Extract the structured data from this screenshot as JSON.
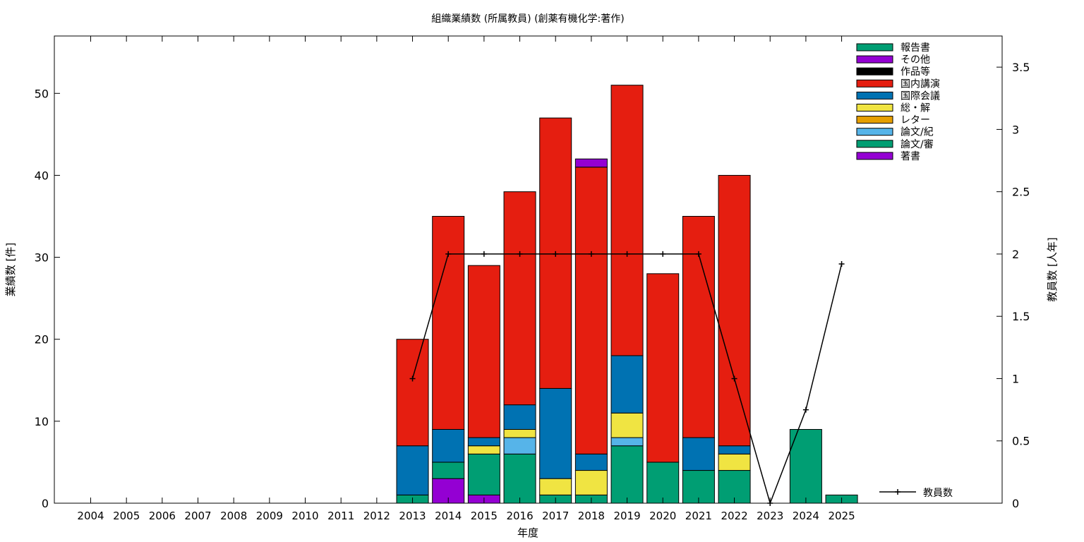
{
  "chart_data": {
    "type": "bar",
    "stacked": true,
    "title": "組織業績数 (所属教員) (創薬有機化学:著作)",
    "xlabel": "年度",
    "ylabel": "業績数 [件]",
    "y2label": "教員数 [人年]",
    "ylim": [
      0,
      57
    ],
    "y2lim": [
      0,
      3.75
    ],
    "yticks": [
      0,
      10,
      20,
      30,
      40,
      50
    ],
    "y2ticks": [
      "0",
      "0.5",
      "1",
      "1.5",
      "2",
      "2.5",
      "3",
      "3.5"
    ],
    "legend_position": "top-right",
    "categories": [
      "2004",
      "2005",
      "2006",
      "2007",
      "2008",
      "2009",
      "2010",
      "2011",
      "2012",
      "2013",
      "2014",
      "2015",
      "2016",
      "2017",
      "2018",
      "2019",
      "2020",
      "2021",
      "2022",
      "2023",
      "2024",
      "2025"
    ],
    "series": [
      {
        "name": "著書",
        "color": "#9400d3",
        "values": [
          0,
          0,
          0,
          0,
          0,
          0,
          0,
          0,
          0,
          0,
          3,
          1,
          0,
          0,
          0,
          0,
          0,
          0,
          0,
          0,
          0,
          0
        ]
      },
      {
        "name": "論文/審",
        "color": "#009e73",
        "values": [
          0,
          0,
          0,
          0,
          0,
          0,
          0,
          0,
          0,
          1,
          2,
          5,
          6,
          1,
          1,
          7,
          5,
          4,
          4,
          0,
          9,
          1
        ]
      },
      {
        "name": "論文/紀",
        "color": "#56b4e9",
        "values": [
          0,
          0,
          0,
          0,
          0,
          0,
          0,
          0,
          0,
          0,
          0,
          0,
          2,
          0,
          0,
          1,
          0,
          0,
          0,
          0,
          0,
          0
        ]
      },
      {
        "name": "レター",
        "color": "#e69f00",
        "values": [
          0,
          0,
          0,
          0,
          0,
          0,
          0,
          0,
          0,
          0,
          0,
          0,
          0,
          0,
          0,
          0,
          0,
          0,
          0,
          0,
          0,
          0
        ]
      },
      {
        "name": "総・解",
        "color": "#f0e442",
        "values": [
          0,
          0,
          0,
          0,
          0,
          0,
          0,
          0,
          0,
          0,
          0,
          1,
          1,
          2,
          3,
          3,
          0,
          0,
          2,
          0,
          0,
          0
        ]
      },
      {
        "name": "国際会議",
        "color": "#0072b2",
        "values": [
          0,
          0,
          0,
          0,
          0,
          0,
          0,
          0,
          0,
          6,
          4,
          1,
          3,
          11,
          2,
          7,
          0,
          4,
          1,
          0,
          0,
          0
        ]
      },
      {
        "name": "国内講演",
        "color": "#e51e10",
        "values": [
          0,
          0,
          0,
          0,
          0,
          0,
          0,
          0,
          0,
          13,
          26,
          21,
          26,
          33,
          35,
          33,
          23,
          27,
          33,
          0,
          0,
          0
        ]
      },
      {
        "name": "作品等",
        "color": "#000000",
        "values": [
          0,
          0,
          0,
          0,
          0,
          0,
          0,
          0,
          0,
          0,
          0,
          0,
          0,
          0,
          0,
          0,
          0,
          0,
          0,
          0,
          0,
          0
        ]
      },
      {
        "name": "その他",
        "color": "#9400d3",
        "values": [
          0,
          0,
          0,
          0,
          0,
          0,
          0,
          0,
          0,
          0,
          0,
          0,
          0,
          0,
          1,
          0,
          0,
          0,
          0,
          0,
          0,
          0
        ]
      },
      {
        "name": "報告書",
        "color": "#009e73",
        "values": [
          0,
          0,
          0,
          0,
          0,
          0,
          0,
          0,
          0,
          0,
          0,
          0,
          0,
          0,
          0,
          0,
          0,
          0,
          0,
          0,
          0,
          0
        ]
      }
    ],
    "legend_order": [
      "報告書",
      "その他",
      "作品等",
      "国内講演",
      "国際会議",
      "総・解",
      "レター",
      "論文/紀",
      "論文/審",
      "著書"
    ],
    "line_series": {
      "name": "教員数",
      "color": "#000000",
      "x": [
        "2013",
        "2014",
        "2015",
        "2016",
        "2017",
        "2018",
        "2019",
        "2020",
        "2021",
        "2022",
        "2023",
        "2024",
        "2025"
      ],
      "values": [
        1,
        2,
        2,
        2,
        2,
        2,
        2,
        2,
        2,
        1,
        0,
        0.75,
        1.92
      ]
    }
  }
}
